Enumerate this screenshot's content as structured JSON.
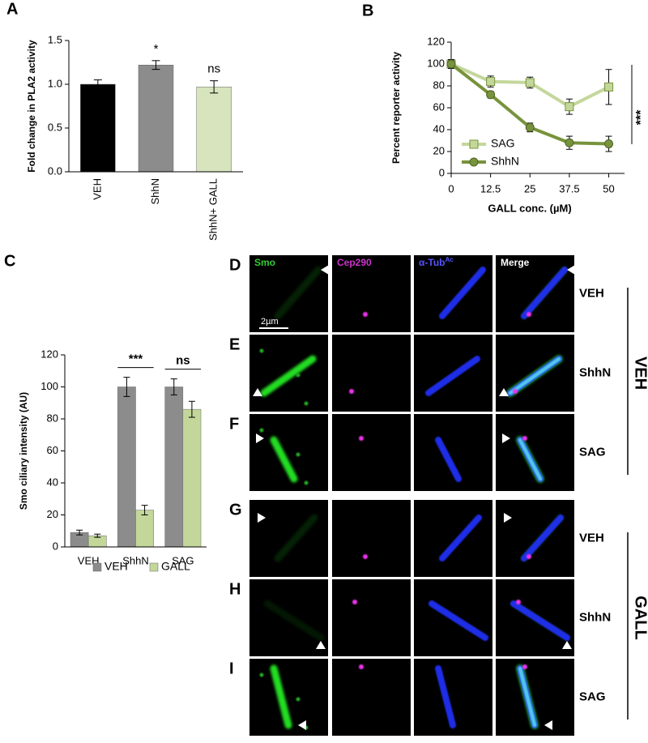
{
  "chart_data": [
    {
      "type": "bar",
      "panel_label": "A",
      "ylabel": "Fold change in PLA2 activity",
      "categories": [
        "VEH",
        "ShhN",
        "ShhN+ GALL"
      ],
      "values": [
        1.0,
        1.22,
        0.97
      ],
      "errors": [
        0.05,
        0.05,
        0.07
      ],
      "colors": [
        "#000000",
        "#8c8c8c",
        "#d7e4bd"
      ],
      "ylim": [
        0,
        1.5
      ],
      "yticks": [
        {
          "value": 0,
          "label": "0.0"
        },
        {
          "value": 0.5,
          "label": "0.5"
        },
        {
          "value": 1,
          "label": "1.0"
        },
        {
          "value": 1.5,
          "label": "1.5"
        }
      ],
      "annotations": [
        "*",
        "ns"
      ]
    },
    {
      "type": "line",
      "panel_label": "B",
      "xlabel": "GALL conc. (µM)",
      "ylabel": "Percent reporter activity",
      "x": [
        0,
        12.5,
        25,
        37.5,
        50
      ],
      "series": [
        {
          "name": "SAG",
          "color": "#c4d79b",
          "marker": "square",
          "values": [
            100,
            84,
            83,
            61,
            79
          ],
          "errors": [
            4,
            5,
            5,
            7,
            16
          ]
        },
        {
          "name": "ShhN",
          "color": "#77933c",
          "marker": "circle",
          "values": [
            100,
            72,
            42,
            28,
            27
          ],
          "errors": [
            4,
            3,
            4,
            6,
            7
          ]
        }
      ],
      "xlim": [
        0,
        55
      ],
      "xticks": [
        0,
        12.5,
        25,
        37.5,
        50
      ],
      "ylim": [
        0,
        120
      ],
      "yticks": [
        0,
        20,
        40,
        60,
        80,
        100,
        120
      ],
      "legend": "lower-left",
      "annotations": [
        "***"
      ]
    },
    {
      "type": "grouped-bar",
      "panel_label": "C",
      "ylabel": "Smo ciliary intensity (AU)",
      "categories": [
        "VEH",
        "ShhN",
        "SAG"
      ],
      "series": [
        {
          "name": "VEH",
          "color": "#8c8c8c",
          "values": [
            9,
            100,
            100
          ],
          "errors": [
            1.5,
            6,
            5
          ]
        },
        {
          "name": "GALL",
          "color": "#c4d79b",
          "values": [
            7,
            23,
            86
          ],
          "errors": [
            1,
            3,
            5
          ]
        }
      ],
      "ylim": [
        0,
        120
      ],
      "yticks": [
        0,
        20,
        40,
        60,
        80,
        100,
        120
      ],
      "legend": "bottom",
      "annotations": [
        "***",
        "ns"
      ]
    }
  ],
  "micrographs": {
    "channels": [
      {
        "name": "Smo"
      },
      {
        "name": "Cep290"
      },
      {
        "name": "α-Tub",
        "sup": "Ac"
      },
      {
        "name": "Merge"
      }
    ],
    "scale_bar": "2µm",
    "groups": [
      {
        "name": "VEH",
        "rows": [
          {
            "panel_label": "D",
            "condition": "VEH"
          },
          {
            "panel_label": "E",
            "condition": "ShhN"
          },
          {
            "panel_label": "F",
            "condition": "SAG"
          }
        ]
      },
      {
        "name": "GALL",
        "rows": [
          {
            "panel_label": "G",
            "condition": "VEH"
          },
          {
            "panel_label": "H",
            "condition": "ShhN"
          },
          {
            "panel_label": "I",
            "condition": "SAG"
          }
        ]
      }
    ]
  }
}
